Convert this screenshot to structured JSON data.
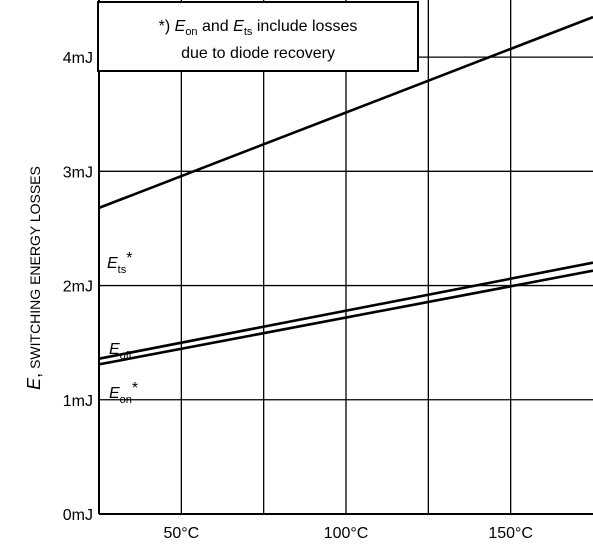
{
  "chart_data": {
    "type": "line",
    "title": "",
    "xlabel": "",
    "ylabel": {
      "symbol": "E",
      "separator": ",",
      "text": " SWITCHING ENERGY LOSSES"
    },
    "xlim": [
      25,
      175
    ],
    "ylim": [
      0,
      4.5
    ],
    "x_ticks": [
      50,
      75,
      100,
      125,
      150
    ],
    "x_tick_labels": [
      "50°C",
      "",
      "100°C",
      "",
      "150°C"
    ],
    "y_ticks": [
      0,
      1,
      2,
      3,
      4
    ],
    "y_tick_labels": [
      "0mJ",
      "1mJ",
      "2mJ",
      "3mJ",
      "4mJ"
    ],
    "grid": true,
    "series": [
      {
        "name": {
          "main": "E",
          "sub": "ts",
          "suffix": "*"
        },
        "x": [
          25,
          175
        ],
        "y": [
          2.68,
          4.35
        ]
      },
      {
        "name": {
          "main": "E",
          "sub": "off",
          "suffix": ""
        },
        "x": [
          25,
          175
        ],
        "y": [
          1.36,
          2.2
        ]
      },
      {
        "name": {
          "main": "E",
          "sub": "on",
          "suffix": "*"
        },
        "x": [
          25,
          175
        ],
        "y": [
          1.31,
          2.13
        ]
      }
    ],
    "annotation": {
      "line1": {
        "prefix": "*) ",
        "e1": "E",
        "e1_sub": "on",
        "mid": " and ",
        "e2": "E",
        "e2_sub": "ts",
        "rest": " include losses"
      },
      "line2": "due to diode recovery"
    }
  }
}
